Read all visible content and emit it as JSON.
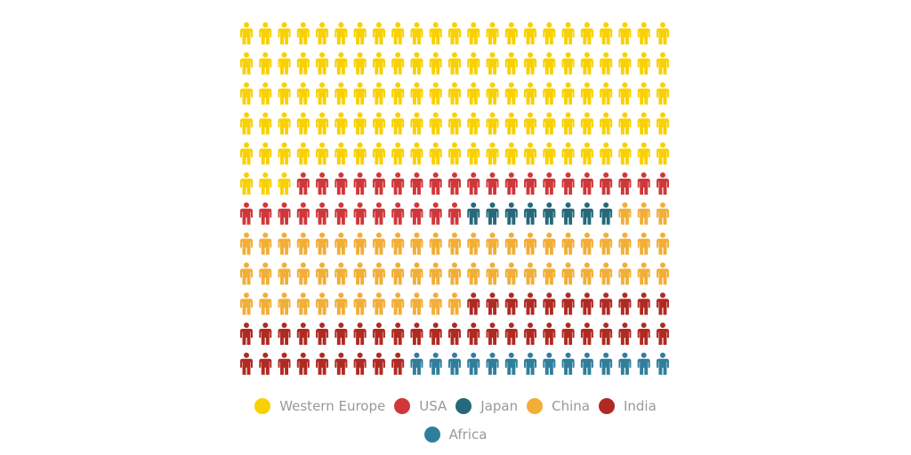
{
  "chart_data": {
    "type": "waffle",
    "title": "",
    "columns": 23,
    "rows": 12,
    "unit": "person icon",
    "series": [
      {
        "name": "Western Europe",
        "value": 118,
        "color": "#f9d000"
      },
      {
        "name": "USA",
        "value": 32,
        "color": "#d0373b"
      },
      {
        "name": "Japan",
        "value": 8,
        "color": "#25697a"
      },
      {
        "name": "China",
        "value": 61,
        "color": "#f2ae36"
      },
      {
        "name": "India",
        "value": 43,
        "color": "#b02a22"
      },
      {
        "name": "Africa",
        "value": 14,
        "color": "#2f7f9c"
      }
    ],
    "legend_position": "bottom"
  }
}
